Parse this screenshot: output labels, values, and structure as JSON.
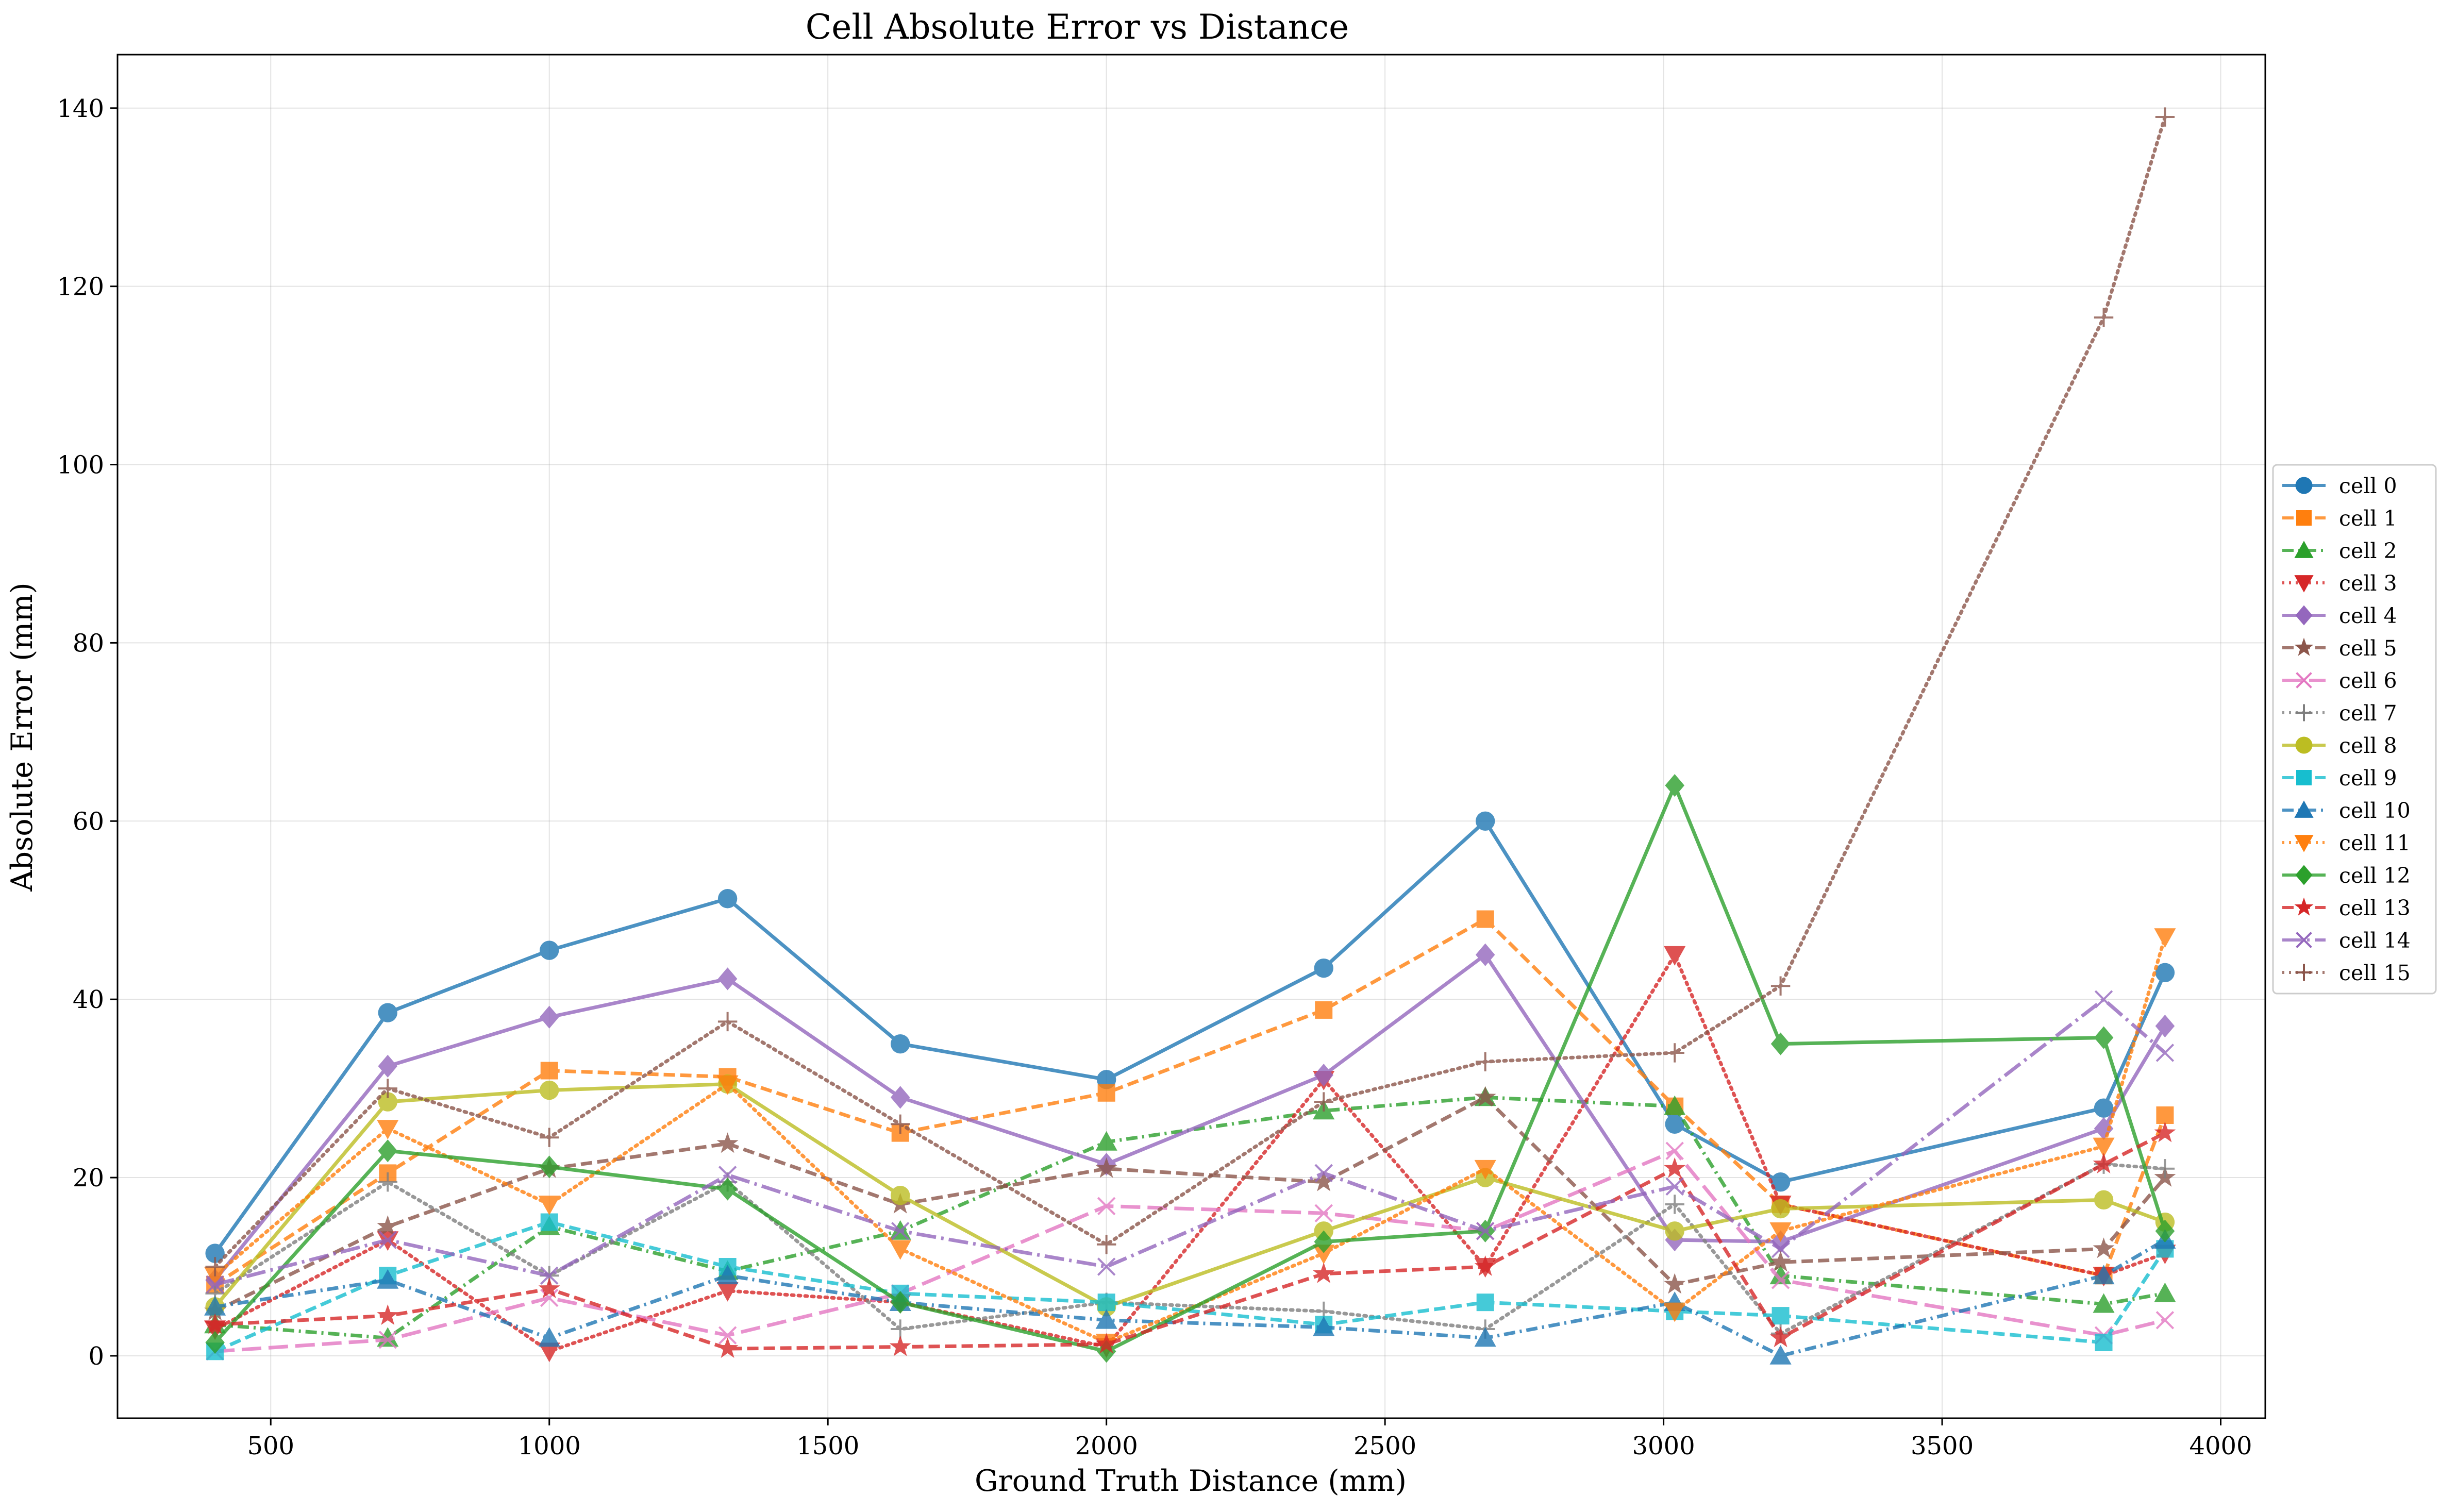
{
  "chart_data": {
    "type": "line",
    "title": "Cell Absolute Error vs Distance",
    "xlabel": "Ground Truth Distance (mm)",
    "ylabel": "Absolute Error (mm)",
    "xlim": [
      225,
      4080
    ],
    "ylim": [
      -7,
      146
    ],
    "xticks": [
      500,
      1000,
      1500,
      2000,
      2500,
      3000,
      3500,
      4000
    ],
    "yticks": [
      0,
      20,
      40,
      60,
      80,
      100,
      120,
      140
    ],
    "grid": true,
    "legend_position": "center-right, outside plot",
    "x": [
      400,
      710,
      1000,
      1320,
      1630,
      2000,
      2390,
      2680,
      3020,
      3210,
      3790,
      3900
    ],
    "series": [
      {
        "name": "cell 0",
        "color": "#1f77b4",
        "marker": "circle",
        "linestyle": "solid",
        "values": [
          11.5,
          38.5,
          45.5,
          51.3,
          35,
          31,
          43.5,
          60,
          26,
          19.5,
          27.8,
          43
        ]
      },
      {
        "name": "cell 1",
        "color": "#ff7f0e",
        "marker": "square",
        "linestyle": "dashed",
        "values": [
          8,
          20.5,
          32,
          31.3,
          25,
          29.5,
          38.8,
          49,
          28,
          17,
          9,
          27
        ]
      },
      {
        "name": "cell 2",
        "color": "#2ca02c",
        "marker": "triangle-up",
        "linestyle": "dashdot",
        "values": [
          3.5,
          2,
          14.5,
          9.5,
          14,
          24,
          27.5,
          29,
          28,
          9,
          5.8,
          7
        ]
      },
      {
        "name": "cell 3",
        "color": "#d62728",
        "marker": "triangle-down",
        "linestyle": "dotted",
        "values": [
          3,
          13,
          0.5,
          7.3,
          6,
          1,
          31,
          10,
          45,
          17,
          9,
          11.5
        ]
      },
      {
        "name": "cell 4",
        "color": "#9467bd",
        "marker": "diamond",
        "linestyle": "solid",
        "values": [
          8.5,
          32.5,
          38,
          42.3,
          29,
          21.5,
          31.5,
          45,
          13,
          12.8,
          25.5,
          37
        ]
      },
      {
        "name": "cell 5",
        "color": "#8c564b",
        "marker": "star",
        "linestyle": "dashed",
        "values": [
          5,
          14.5,
          21,
          23.8,
          17,
          21,
          19.5,
          29,
          8,
          10.5,
          12,
          20
        ]
      },
      {
        "name": "cell 6",
        "color": "#e377c2",
        "marker": "x",
        "linestyle": "longdash",
        "values": [
          0.5,
          1.8,
          6.5,
          2.3,
          7,
          16.8,
          16,
          14,
          23,
          8.5,
          2.3,
          4
        ]
      },
      {
        "name": "cell 7",
        "color": "#7f7f7f",
        "marker": "plus",
        "linestyle": "dotted",
        "values": [
          7,
          19.5,
          9,
          19.5,
          3,
          6,
          5,
          3,
          17,
          2.5,
          21.5,
          21
        ]
      },
      {
        "name": "cell 8",
        "color": "#bcbd22",
        "marker": "circle",
        "linestyle": "solid",
        "values": [
          5.5,
          28.5,
          29.8,
          30.5,
          18,
          5.5,
          14,
          20,
          14,
          16.5,
          17.5,
          15
        ]
      },
      {
        "name": "cell 9",
        "color": "#17becf",
        "marker": "square",
        "linestyle": "dashed",
        "values": [
          0.5,
          9,
          15,
          10,
          7,
          6,
          3.5,
          6,
          5,
          4.5,
          1.5,
          12
        ]
      },
      {
        "name": "cell 10",
        "color": "#1f77b4",
        "marker": "triangle-up",
        "linestyle": "dashdot",
        "values": [
          5.5,
          8.5,
          2,
          9,
          6,
          4,
          3.2,
          2,
          6,
          0,
          9,
          13
        ]
      },
      {
        "name": "cell 11",
        "color": "#ff7f0e",
        "marker": "triangle-down",
        "linestyle": "dotted",
        "values": [
          9,
          25.5,
          17,
          30.5,
          12,
          1.5,
          11.5,
          21,
          5,
          14,
          23.5,
          47
        ]
      },
      {
        "name": "cell 12",
        "color": "#2ca02c",
        "marker": "diamond",
        "linestyle": "solid",
        "values": [
          1.5,
          23,
          21.2,
          18.7,
          6,
          0.5,
          12.8,
          14,
          64,
          35,
          35.7,
          14
        ]
      },
      {
        "name": "cell 13",
        "color": "#d62728",
        "marker": "star",
        "linestyle": "dashed",
        "values": [
          3.5,
          4.5,
          7.5,
          0.8,
          1,
          1.3,
          9.2,
          10,
          21,
          2,
          21.5,
          25
        ]
      },
      {
        "name": "cell 14",
        "color": "#9467bd",
        "marker": "x",
        "linestyle": "longdashdot",
        "values": [
          8,
          13,
          9,
          20.3,
          14,
          10,
          20.5,
          14,
          19,
          12,
          40,
          34
        ]
      },
      {
        "name": "cell 15",
        "color": "#8c564b",
        "marker": "plus",
        "linestyle": "dotted",
        "values": [
          10,
          30,
          24.5,
          37.5,
          26,
          12.5,
          28.5,
          33,
          34,
          41.5,
          116.5,
          139
        ]
      }
    ]
  }
}
